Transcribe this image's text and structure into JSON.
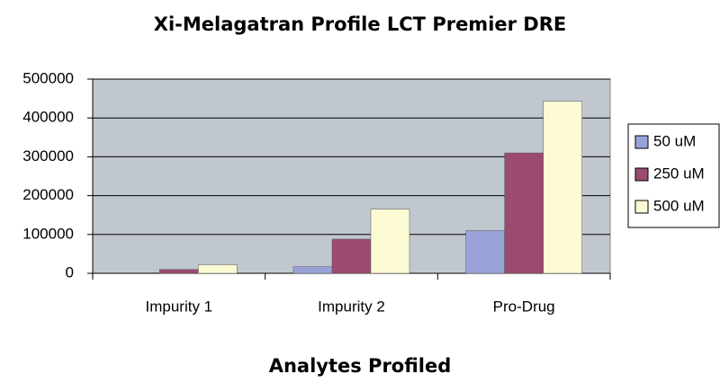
{
  "chart_data": {
    "type": "bar",
    "title": "Xi-Melagatran Profile LCT Premier DRE",
    "x_label": "Analytes Profiled",
    "categories": [
      "Impurity 1",
      "Impurity 2",
      "Pro-Drug"
    ],
    "series": [
      {
        "name": "50 uM",
        "color": "#9aa3d9",
        "values": [
          0,
          17000,
          110000
        ]
      },
      {
        "name": "250 uM",
        "color": "#9c4a70",
        "values": [
          10000,
          88000,
          310000
        ]
      },
      {
        "name": "500 uM",
        "color": "#fcfad2",
        "values": [
          22000,
          165000,
          443000
        ]
      }
    ],
    "ylim": [
      0,
      500000
    ],
    "yticks": [
      0,
      100000,
      200000,
      300000,
      400000,
      500000
    ],
    "grid": true,
    "legend": "right"
  }
}
